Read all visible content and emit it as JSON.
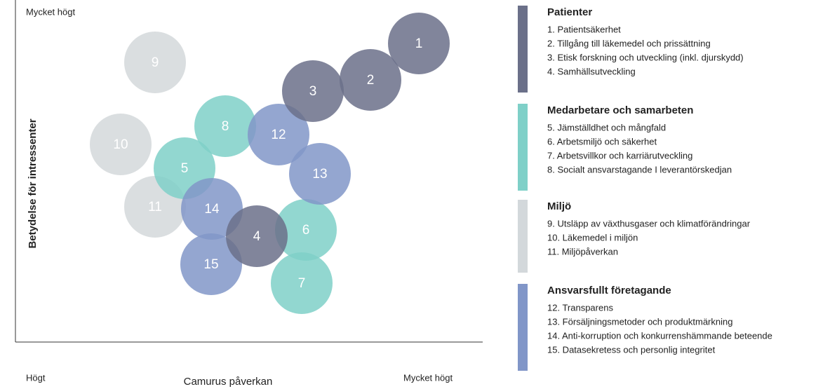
{
  "axes": {
    "y_top": "Mycket högt",
    "y_title": "Betydelse för intressenter",
    "x_left": "Högt",
    "x_title": "Camurus påverkan",
    "x_right": "Mycket högt"
  },
  "groups": [
    {
      "title": "Patienter",
      "color": "#6b7089",
      "items": [
        "1. Patientsäkerhet",
        "2. Tillgång till läkemedel och prissättning",
        "3. Etisk forskning och utveckling (inkl. djurskydd)",
        "4. Samhällsutveckling"
      ]
    },
    {
      "title": "Medarbetare och samarbeten",
      "color": "#7fd0c8",
      "items": [
        "5. Jämställdhet och mångfald",
        "6. Arbetsmiljö och säkerhet",
        "7. Arbetsvillkor och karriärutveckling",
        "8. Socialt ansvarstagande I leverantörskedjan"
      ]
    },
    {
      "title": "Miljö",
      "color": "#d3d8db",
      "items": [
        "9. Utsläpp av växthusgaser och klimatförändringar",
        "10. Läkemedel i miljön",
        "11. Miljöpåverkan"
      ]
    },
    {
      "title": "Ansvarsfullt företagande",
      "color": "#8196c8",
      "items": [
        "12. Transparens",
        "13. Försäljningsmetoder och produktmärkning",
        "14. Anti-korruption och konkurrenshämmande beteende",
        "15. Datasekretess och personlig integritet"
      ]
    }
  ],
  "bubbles": [
    {
      "label": "1",
      "group": 0
    },
    {
      "label": "2",
      "group": 0
    },
    {
      "label": "3",
      "group": 0
    },
    {
      "label": "4",
      "group": 0
    },
    {
      "label": "5",
      "group": 1
    },
    {
      "label": "6",
      "group": 1
    },
    {
      "label": "7",
      "group": 1
    },
    {
      "label": "8",
      "group": 1
    },
    {
      "label": "9",
      "group": 2
    },
    {
      "label": "10",
      "group": 2
    },
    {
      "label": "11",
      "group": 2
    },
    {
      "label": "12",
      "group": 3
    },
    {
      "label": "13",
      "group": 3
    },
    {
      "label": "14",
      "group": 3
    },
    {
      "label": "15",
      "group": 3
    }
  ]
}
